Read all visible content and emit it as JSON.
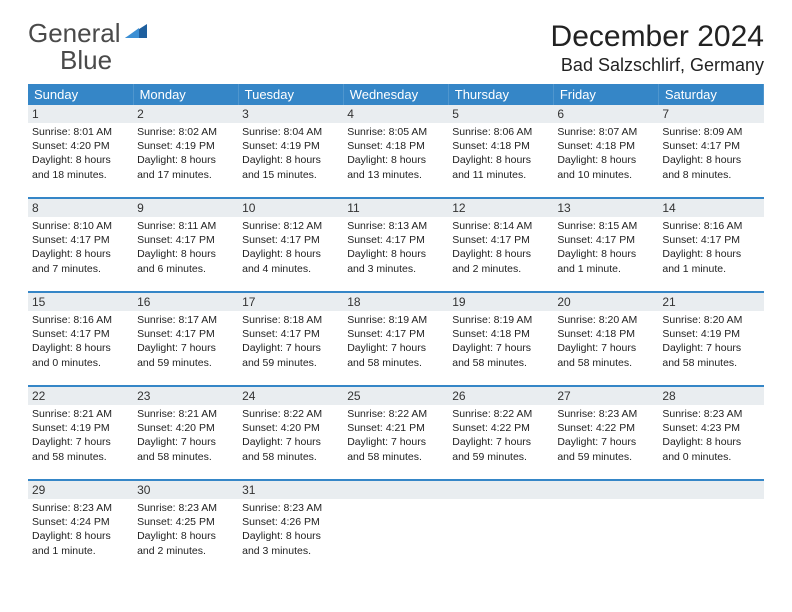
{
  "brand": {
    "word1": "General",
    "word2": "Blue"
  },
  "title": "December 2024",
  "location": "Bad Salzschlirf, Germany",
  "colors": {
    "header_bg": "#3586c7",
    "header_text": "#ffffff",
    "daynum_bg": "#e9edf0",
    "divider": "#3586c7",
    "brand_gray": "#4a4a4a",
    "brand_blue": "#2b7ec2"
  },
  "dow": [
    "Sunday",
    "Monday",
    "Tuesday",
    "Wednesday",
    "Thursday",
    "Friday",
    "Saturday"
  ],
  "weeks": [
    [
      {
        "n": "1",
        "sr": "Sunrise: 8:01 AM",
        "ss": "Sunset: 4:20 PM",
        "dl": "Daylight: 8 hours and 18 minutes."
      },
      {
        "n": "2",
        "sr": "Sunrise: 8:02 AM",
        "ss": "Sunset: 4:19 PM",
        "dl": "Daylight: 8 hours and 17 minutes."
      },
      {
        "n": "3",
        "sr": "Sunrise: 8:04 AM",
        "ss": "Sunset: 4:19 PM",
        "dl": "Daylight: 8 hours and 15 minutes."
      },
      {
        "n": "4",
        "sr": "Sunrise: 8:05 AM",
        "ss": "Sunset: 4:18 PM",
        "dl": "Daylight: 8 hours and 13 minutes."
      },
      {
        "n": "5",
        "sr": "Sunrise: 8:06 AM",
        "ss": "Sunset: 4:18 PM",
        "dl": "Daylight: 8 hours and 11 minutes."
      },
      {
        "n": "6",
        "sr": "Sunrise: 8:07 AM",
        "ss": "Sunset: 4:18 PM",
        "dl": "Daylight: 8 hours and 10 minutes."
      },
      {
        "n": "7",
        "sr": "Sunrise: 8:09 AM",
        "ss": "Sunset: 4:17 PM",
        "dl": "Daylight: 8 hours and 8 minutes."
      }
    ],
    [
      {
        "n": "8",
        "sr": "Sunrise: 8:10 AM",
        "ss": "Sunset: 4:17 PM",
        "dl": "Daylight: 8 hours and 7 minutes."
      },
      {
        "n": "9",
        "sr": "Sunrise: 8:11 AM",
        "ss": "Sunset: 4:17 PM",
        "dl": "Daylight: 8 hours and 6 minutes."
      },
      {
        "n": "10",
        "sr": "Sunrise: 8:12 AM",
        "ss": "Sunset: 4:17 PM",
        "dl": "Daylight: 8 hours and 4 minutes."
      },
      {
        "n": "11",
        "sr": "Sunrise: 8:13 AM",
        "ss": "Sunset: 4:17 PM",
        "dl": "Daylight: 8 hours and 3 minutes."
      },
      {
        "n": "12",
        "sr": "Sunrise: 8:14 AM",
        "ss": "Sunset: 4:17 PM",
        "dl": "Daylight: 8 hours and 2 minutes."
      },
      {
        "n": "13",
        "sr": "Sunrise: 8:15 AM",
        "ss": "Sunset: 4:17 PM",
        "dl": "Daylight: 8 hours and 1 minute."
      },
      {
        "n": "14",
        "sr": "Sunrise: 8:16 AM",
        "ss": "Sunset: 4:17 PM",
        "dl": "Daylight: 8 hours and 1 minute."
      }
    ],
    [
      {
        "n": "15",
        "sr": "Sunrise: 8:16 AM",
        "ss": "Sunset: 4:17 PM",
        "dl": "Daylight: 8 hours and 0 minutes."
      },
      {
        "n": "16",
        "sr": "Sunrise: 8:17 AM",
        "ss": "Sunset: 4:17 PM",
        "dl": "Daylight: 7 hours and 59 minutes."
      },
      {
        "n": "17",
        "sr": "Sunrise: 8:18 AM",
        "ss": "Sunset: 4:17 PM",
        "dl": "Daylight: 7 hours and 59 minutes."
      },
      {
        "n": "18",
        "sr": "Sunrise: 8:19 AM",
        "ss": "Sunset: 4:17 PM",
        "dl": "Daylight: 7 hours and 58 minutes."
      },
      {
        "n": "19",
        "sr": "Sunrise: 8:19 AM",
        "ss": "Sunset: 4:18 PM",
        "dl": "Daylight: 7 hours and 58 minutes."
      },
      {
        "n": "20",
        "sr": "Sunrise: 8:20 AM",
        "ss": "Sunset: 4:18 PM",
        "dl": "Daylight: 7 hours and 58 minutes."
      },
      {
        "n": "21",
        "sr": "Sunrise: 8:20 AM",
        "ss": "Sunset: 4:19 PM",
        "dl": "Daylight: 7 hours and 58 minutes."
      }
    ],
    [
      {
        "n": "22",
        "sr": "Sunrise: 8:21 AM",
        "ss": "Sunset: 4:19 PM",
        "dl": "Daylight: 7 hours and 58 minutes."
      },
      {
        "n": "23",
        "sr": "Sunrise: 8:21 AM",
        "ss": "Sunset: 4:20 PM",
        "dl": "Daylight: 7 hours and 58 minutes."
      },
      {
        "n": "24",
        "sr": "Sunrise: 8:22 AM",
        "ss": "Sunset: 4:20 PM",
        "dl": "Daylight: 7 hours and 58 minutes."
      },
      {
        "n": "25",
        "sr": "Sunrise: 8:22 AM",
        "ss": "Sunset: 4:21 PM",
        "dl": "Daylight: 7 hours and 58 minutes."
      },
      {
        "n": "26",
        "sr": "Sunrise: 8:22 AM",
        "ss": "Sunset: 4:22 PM",
        "dl": "Daylight: 7 hours and 59 minutes."
      },
      {
        "n": "27",
        "sr": "Sunrise: 8:23 AM",
        "ss": "Sunset: 4:22 PM",
        "dl": "Daylight: 7 hours and 59 minutes."
      },
      {
        "n": "28",
        "sr": "Sunrise: 8:23 AM",
        "ss": "Sunset: 4:23 PM",
        "dl": "Daylight: 8 hours and 0 minutes."
      }
    ],
    [
      {
        "n": "29",
        "sr": "Sunrise: 8:23 AM",
        "ss": "Sunset: 4:24 PM",
        "dl": "Daylight: 8 hours and 1 minute."
      },
      {
        "n": "30",
        "sr": "Sunrise: 8:23 AM",
        "ss": "Sunset: 4:25 PM",
        "dl": "Daylight: 8 hours and 2 minutes."
      },
      {
        "n": "31",
        "sr": "Sunrise: 8:23 AM",
        "ss": "Sunset: 4:26 PM",
        "dl": "Daylight: 8 hours and 3 minutes."
      },
      null,
      null,
      null,
      null
    ]
  ]
}
